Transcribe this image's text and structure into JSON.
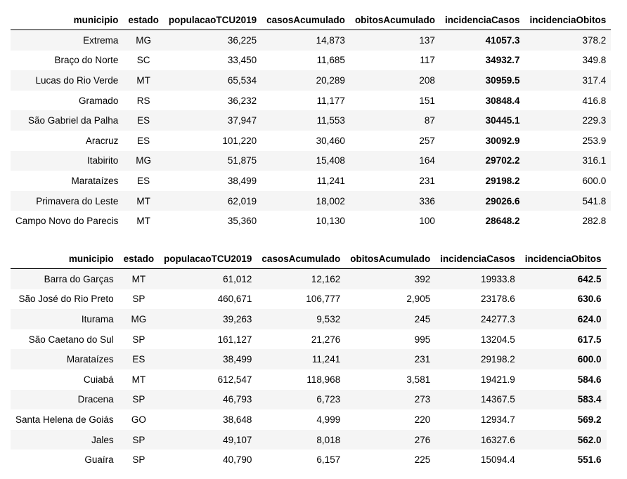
{
  "table1": {
    "columns": [
      "municipio",
      "estado",
      "populacaoTCU2019",
      "casosAcumulado",
      "obitosAcumulado",
      "incidenciaCasos",
      "incidenciaObitos"
    ],
    "highlight_column": 5,
    "rows": [
      [
        "Extrema",
        "MG",
        "36,225",
        "14,873",
        "137",
        "41057.3",
        "378.2"
      ],
      [
        "Braço do Norte",
        "SC",
        "33,450",
        "11,685",
        "117",
        "34932.7",
        "349.8"
      ],
      [
        "Lucas do Rio Verde",
        "MT",
        "65,534",
        "20,289",
        "208",
        "30959.5",
        "317.4"
      ],
      [
        "Gramado",
        "RS",
        "36,232",
        "11,177",
        "151",
        "30848.4",
        "416.8"
      ],
      [
        "São Gabriel da Palha",
        "ES",
        "37,947",
        "11,553",
        "87",
        "30445.1",
        "229.3"
      ],
      [
        "Aracruz",
        "ES",
        "101,220",
        "30,460",
        "257",
        "30092.9",
        "253.9"
      ],
      [
        "Itabirito",
        "MG",
        "51,875",
        "15,408",
        "164",
        "29702.2",
        "316.1"
      ],
      [
        "Marataízes",
        "ES",
        "38,499",
        "11,241",
        "231",
        "29198.2",
        "600.0"
      ],
      [
        "Primavera do Leste",
        "MT",
        "62,019",
        "18,002",
        "336",
        "29026.6",
        "541.8"
      ],
      [
        "Campo Novo do Parecis",
        "MT",
        "35,360",
        "10,130",
        "100",
        "28648.2",
        "282.8"
      ]
    ]
  },
  "table2": {
    "columns": [
      "municipio",
      "estado",
      "populacaoTCU2019",
      "casosAcumulado",
      "obitosAcumulado",
      "incidenciaCasos",
      "incidenciaObitos"
    ],
    "highlight_column": 6,
    "rows": [
      [
        "Barra do Garças",
        "MT",
        "61,012",
        "12,162",
        "392",
        "19933.8",
        "642.5"
      ],
      [
        "São José do Rio Preto",
        "SP",
        "460,671",
        "106,777",
        "2,905",
        "23178.6",
        "630.6"
      ],
      [
        "Iturama",
        "MG",
        "39,263",
        "9,532",
        "245",
        "24277.3",
        "624.0"
      ],
      [
        "São Caetano do Sul",
        "SP",
        "161,127",
        "21,276",
        "995",
        "13204.5",
        "617.5"
      ],
      [
        "Marataízes",
        "ES",
        "38,499",
        "11,241",
        "231",
        "29198.2",
        "600.0"
      ],
      [
        "Cuiabá",
        "MT",
        "612,547",
        "118,968",
        "3,581",
        "19421.9",
        "584.6"
      ],
      [
        "Dracena",
        "SP",
        "46,793",
        "6,723",
        "273",
        "14367.5",
        "583.4"
      ],
      [
        "Santa Helena de Goiás",
        "GO",
        "38,648",
        "4,999",
        "220",
        "12934.7",
        "569.2"
      ],
      [
        "Jales",
        "SP",
        "49,107",
        "8,018",
        "276",
        "16327.6",
        "562.0"
      ],
      [
        "Guaíra",
        "SP",
        "40,790",
        "6,157",
        "225",
        "15094.4",
        "551.6"
      ]
    ]
  }
}
